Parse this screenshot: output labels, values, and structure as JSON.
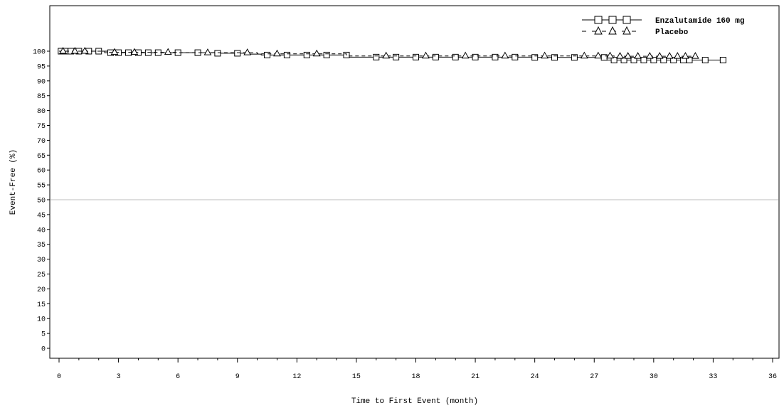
{
  "chart_data": {
    "type": "line",
    "title": "",
    "xlabel": "Time to First Event (month)",
    "ylabel": "Event-Free (%)",
    "xlim": [
      0,
      36
    ],
    "ylim": [
      0,
      100
    ],
    "xticks": [
      "0",
      "3",
      "6",
      "9",
      "12",
      "15",
      "18",
      "21",
      "24",
      "27",
      "30",
      "33",
      "36"
    ],
    "yticks": [
      "0",
      "5",
      "10",
      "15",
      "20",
      "25",
      "30",
      "35",
      "40",
      "45",
      "50",
      "55",
      "60",
      "65",
      "70",
      "75",
      "80",
      "85",
      "90",
      "95",
      "100"
    ],
    "reference_line_y": 50,
    "legend_position": "top-right",
    "series": [
      {
        "name": "Enzalutamide 160 mg",
        "marker": "square",
        "line_style": "solid",
        "color": "#000000",
        "x": [
          0,
          2.3,
          5,
          8,
          9.5,
          10.2,
          12,
          14.6,
          15,
          24,
          27.4,
          27.6,
          31.8,
          32.6,
          33.5
        ],
        "y": [
          100,
          99.5,
          99.5,
          99.3,
          99.0,
          98.7,
          98.7,
          98.0,
          98.0,
          97.9,
          97.9,
          97.0,
          97.0,
          97.0,
          97.0
        ],
        "censored_x": [
          0.1,
          0.3,
          0.6,
          1.0,
          1.5,
          2.0,
          2.6,
          3.0,
          3.5,
          4.0,
          4.5,
          5.0,
          6.0,
          7.0,
          8.0,
          9.0,
          10.5,
          11.5,
          12.5,
          13.5,
          14.5,
          16.0,
          17.0,
          18.0,
          19.0,
          20.0,
          21.0,
          22.0,
          23.0,
          24.0,
          25.0,
          26.0,
          27.5,
          28.0,
          28.5,
          29.0,
          29.5,
          30.0,
          30.5,
          31.0,
          31.5,
          31.8,
          32.6,
          33.5
        ]
      },
      {
        "name": "Placebo",
        "marker": "triangle",
        "line_style": "dashed",
        "color": "#000000",
        "x": [
          0,
          2.5,
          6,
          10,
          14.5,
          15,
          28,
          32.1
        ],
        "y": [
          100,
          99.6,
          99.5,
          99.1,
          98.4,
          98.4,
          98.3,
          98.3
        ],
        "censored_x": [
          0.2,
          0.8,
          1.3,
          2.8,
          3.8,
          5.5,
          7.5,
          9.5,
          11.0,
          13.0,
          16.5,
          18.5,
          20.5,
          22.5,
          24.5,
          26.5,
          27.2,
          27.8,
          28.3,
          28.7,
          29.2,
          29.8,
          30.3,
          30.8,
          31.2,
          31.6,
          32.1
        ]
      }
    ]
  }
}
